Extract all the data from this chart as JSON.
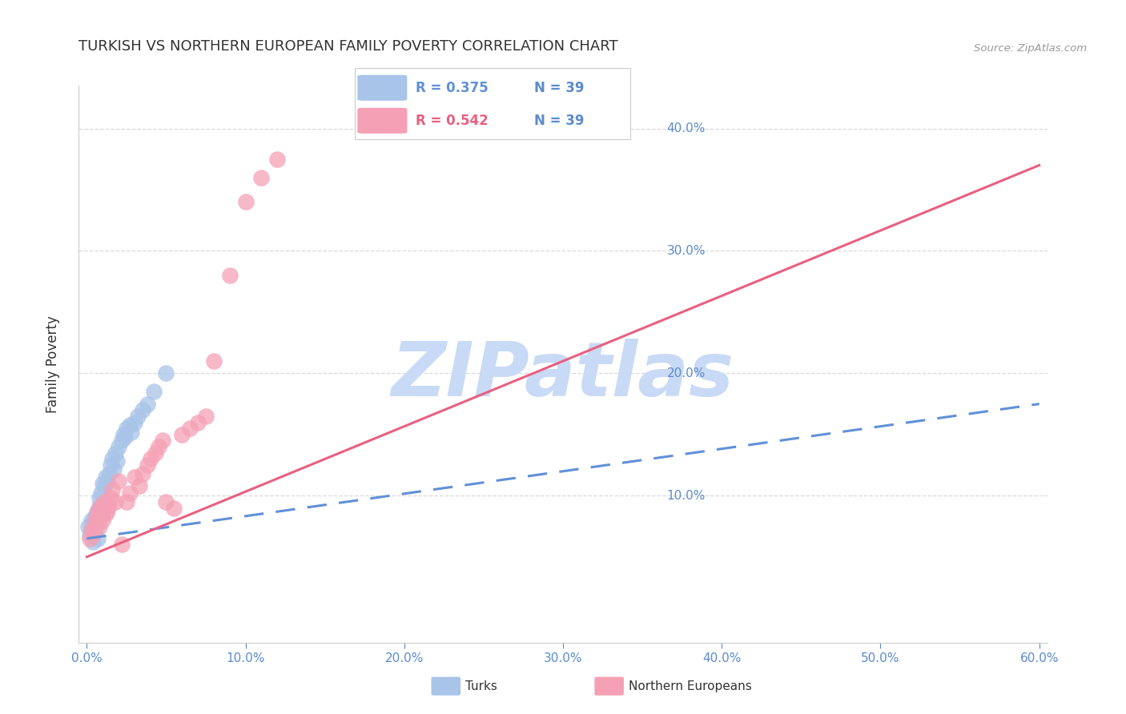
{
  "title": "TURKISH VS NORTHERN EUROPEAN FAMILY POVERTY CORRELATION CHART",
  "source": "Source: ZipAtlas.com",
  "ylabel": "Family Poverty",
  "turks_color": "#a8c4e8",
  "northern_color": "#f5a0b5",
  "turks_line_color": "#6090d8",
  "northern_line_color": "#e86080",
  "turks_dash_color": "#a0b8d8",
  "legend_turks_R": "R = 0.375",
  "legend_turks_N": "N = 39",
  "legend_northern_R": "R = 0.542",
  "legend_northern_N": "N = 39",
  "legend_turks_label": "Turks",
  "legend_northern_label": "Northern Europeans",
  "watermark": "ZIPatlas",
  "watermark_color": "#c8daf5",
  "title_color": "#333333",
  "axis_color": "#5b8ccc",
  "grid_color": "#d0d0d0",
  "bg_color": "#ffffff",
  "xlim": [
    0.0,
    0.6
  ],
  "ylim": [
    0.0,
    0.42
  ],
  "xticks": [
    0.0,
    0.1,
    0.2,
    0.3,
    0.4,
    0.5,
    0.6
  ],
  "xtick_labels": [
    "0.0%",
    "10.0%",
    "20.0%",
    "30.0%",
    "40.0%",
    "50.0%",
    "60.0%"
  ],
  "ytick_right_labels": [
    "10.0%",
    "20.0%",
    "30.0%",
    "40.0%"
  ],
  "turks_x": [
    0.001,
    0.002,
    0.003,
    0.003,
    0.004,
    0.004,
    0.005,
    0.005,
    0.006,
    0.006,
    0.007,
    0.007,
    0.008,
    0.008,
    0.009,
    0.01,
    0.01,
    0.011,
    0.012,
    0.013,
    0.014,
    0.015,
    0.016,
    0.017,
    0.018,
    0.019,
    0.02,
    0.022,
    0.023,
    0.024,
    0.025,
    0.027,
    0.028,
    0.03,
    0.032,
    0.035,
    0.038,
    0.042,
    0.05
  ],
  "turks_y": [
    0.075,
    0.068,
    0.072,
    0.08,
    0.062,
    0.078,
    0.07,
    0.082,
    0.075,
    0.085,
    0.065,
    0.088,
    0.092,
    0.098,
    0.102,
    0.085,
    0.11,
    0.108,
    0.115,
    0.112,
    0.118,
    0.125,
    0.13,
    0.122,
    0.135,
    0.128,
    0.14,
    0.145,
    0.15,
    0.148,
    0.155,
    0.158,
    0.152,
    0.16,
    0.165,
    0.17,
    0.175,
    0.185,
    0.2
  ],
  "northern_x": [
    0.002,
    0.003,
    0.004,
    0.005,
    0.006,
    0.007,
    0.008,
    0.009,
    0.01,
    0.011,
    0.012,
    0.013,
    0.014,
    0.015,
    0.016,
    0.018,
    0.02,
    0.022,
    0.025,
    0.027,
    0.03,
    0.033,
    0.035,
    0.038,
    0.04,
    0.043,
    0.045,
    0.048,
    0.05,
    0.055,
    0.06,
    0.065,
    0.07,
    0.075,
    0.08,
    0.09,
    0.1,
    0.11,
    0.12
  ],
  "northern_y": [
    0.065,
    0.072,
    0.068,
    0.078,
    0.082,
    0.088,
    0.075,
    0.092,
    0.08,
    0.095,
    0.085,
    0.088,
    0.092,
    0.098,
    0.105,
    0.095,
    0.112,
    0.06,
    0.095,
    0.102,
    0.115,
    0.108,
    0.118,
    0.125,
    0.13,
    0.135,
    0.14,
    0.145,
    0.095,
    0.09,
    0.15,
    0.155,
    0.16,
    0.165,
    0.21,
    0.28,
    0.34,
    0.36,
    0.375
  ],
  "turks_trendline_x": [
    0.0,
    0.6
  ],
  "turks_trendline_y_start": 0.065,
  "turks_trendline_y_end": 0.175,
  "northern_trendline_y_start": 0.05,
  "northern_trendline_y_end": 0.37
}
